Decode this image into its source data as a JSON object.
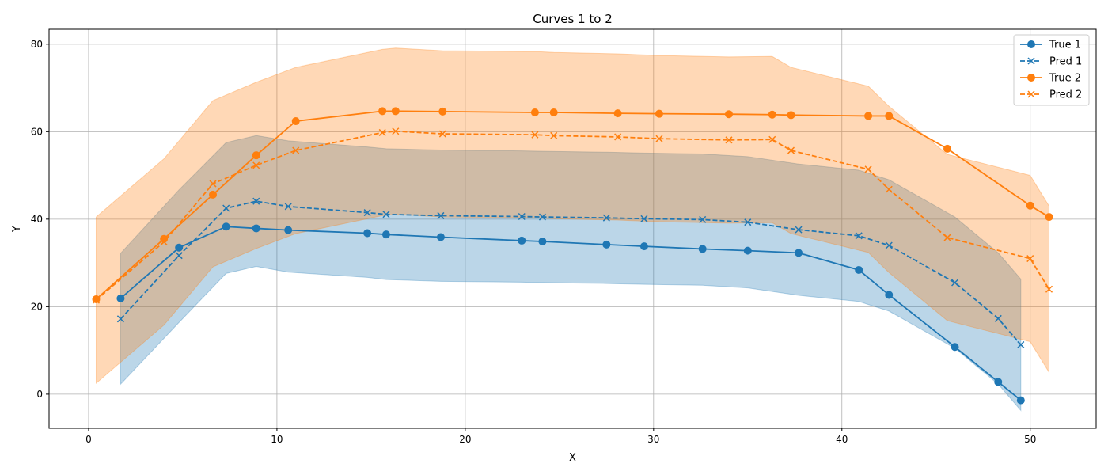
{
  "chart_data": {
    "type": "line",
    "title": "Curves 1 to 2",
    "xlabel": "X",
    "ylabel": "Y",
    "xlim": [
      -2.1,
      53.5
    ],
    "ylim": [
      -7.8,
      83.4
    ],
    "xticks": [
      0,
      10,
      20,
      30,
      40,
      50
    ],
    "yticks": [
      0,
      20,
      40,
      60,
      80
    ],
    "grid": true,
    "legend_position": "top-right",
    "series": [
      {
        "name": "True 1",
        "style": "solid",
        "marker": "circle",
        "color": "#1f77b4",
        "x": [
          1.7,
          4.8,
          7.3,
          8.9,
          10.6,
          14.8,
          15.8,
          18.7,
          23.0,
          24.1,
          27.5,
          29.5,
          32.6,
          35.0,
          37.7,
          40.9,
          42.5,
          46.0,
          48.3,
          49.5
        ],
        "y": [
          21.9,
          33.5,
          38.3,
          37.9,
          37.5,
          36.8,
          36.5,
          35.9,
          35.1,
          34.9,
          34.2,
          33.8,
          33.2,
          32.8,
          32.3,
          28.4,
          22.7,
          10.8,
          2.8,
          -1.4
        ]
      },
      {
        "name": "Pred 1",
        "style": "dashed",
        "marker": "x",
        "color": "#1f77b4",
        "x": [
          1.7,
          4.8,
          7.3,
          8.9,
          10.6,
          14.8,
          15.8,
          18.7,
          23.0,
          24.1,
          27.5,
          29.5,
          32.6,
          35.0,
          37.7,
          40.9,
          42.5,
          46.0,
          48.3,
          49.5
        ],
        "y": [
          17.2,
          31.7,
          42.5,
          44.1,
          42.9,
          41.5,
          41.1,
          40.8,
          40.6,
          40.5,
          40.3,
          40.1,
          39.9,
          39.3,
          37.6,
          36.2,
          34.0,
          25.5,
          17.3,
          11.3
        ]
      },
      {
        "name": "True 2",
        "style": "solid",
        "marker": "circle",
        "color": "#ff7f0e",
        "x": [
          0.4,
          4.0,
          6.6,
          8.9,
          11.0,
          15.6,
          16.3,
          18.8,
          23.7,
          24.7,
          28.1,
          30.3,
          34.0,
          36.3,
          37.3,
          41.4,
          42.5,
          45.6,
          50.0,
          51.0
        ],
        "y": [
          21.7,
          35.5,
          45.6,
          54.6,
          62.4,
          64.7,
          64.7,
          64.6,
          64.4,
          64.4,
          64.2,
          64.1,
          64.0,
          63.9,
          63.8,
          63.6,
          63.6,
          56.1,
          43.1,
          40.5
        ]
      },
      {
        "name": "Pred 2",
        "style": "dashed",
        "marker": "x",
        "color": "#ff7f0e",
        "x": [
          0.4,
          4.0,
          6.6,
          8.9,
          11.0,
          15.6,
          16.3,
          18.8,
          23.7,
          24.7,
          28.1,
          30.3,
          34.0,
          36.3,
          37.3,
          41.4,
          42.5,
          45.6,
          50.0,
          51.0
        ],
        "y": [
          21.5,
          34.8,
          48.1,
          52.3,
          55.7,
          59.8,
          60.1,
          59.5,
          59.3,
          59.1,
          58.8,
          58.4,
          58.1,
          58.2,
          55.7,
          51.4,
          46.8,
          35.8,
          31.0,
          24.0
        ]
      }
    ],
    "bands": [
      {
        "series": "True 1",
        "color": "#1f77b4",
        "x": [
          1.7,
          4.8,
          7.3,
          8.9,
          10.6,
          14.8,
          15.8,
          18.7,
          23.0,
          24.1,
          27.5,
          29.5,
          32.6,
          35.0,
          37.7,
          40.9,
          42.5,
          46.0,
          48.3,
          49.5
        ],
        "lower": [
          2.3,
          16.4,
          27.6,
          29.2,
          27.9,
          26.7,
          26.2,
          25.8,
          25.6,
          25.5,
          25.3,
          25.1,
          24.9,
          24.3,
          22.6,
          21.2,
          19.0,
          10.5,
          2.3,
          -3.7
        ],
        "upper": [
          32.2,
          46.7,
          57.5,
          59.1,
          57.9,
          56.5,
          56.1,
          55.8,
          55.6,
          55.5,
          55.3,
          55.1,
          54.9,
          54.3,
          52.6,
          51.2,
          49.0,
          40.5,
          32.3,
          26.3
        ]
      },
      {
        "series": "True 2",
        "color": "#ff7f0e",
        "x": [
          0.4,
          4.0,
          6.6,
          8.9,
          11.0,
          15.6,
          16.3,
          18.8,
          23.7,
          24.7,
          28.1,
          30.3,
          34.0,
          36.3,
          37.3,
          41.4,
          42.5,
          45.6,
          50.0,
          51.0
        ],
        "lower": [
          2.5,
          15.8,
          29.1,
          33.3,
          36.7,
          40.8,
          41.1,
          40.5,
          40.3,
          40.1,
          39.8,
          39.4,
          39.1,
          39.2,
          36.7,
          32.4,
          27.8,
          16.8,
          12.0,
          5.0
        ],
        "upper": [
          40.5,
          53.8,
          67.1,
          71.3,
          74.7,
          78.8,
          79.1,
          78.5,
          78.3,
          78.1,
          77.8,
          77.4,
          77.1,
          77.2,
          74.7,
          70.4,
          65.8,
          54.8,
          50.0,
          43.0
        ]
      }
    ]
  }
}
